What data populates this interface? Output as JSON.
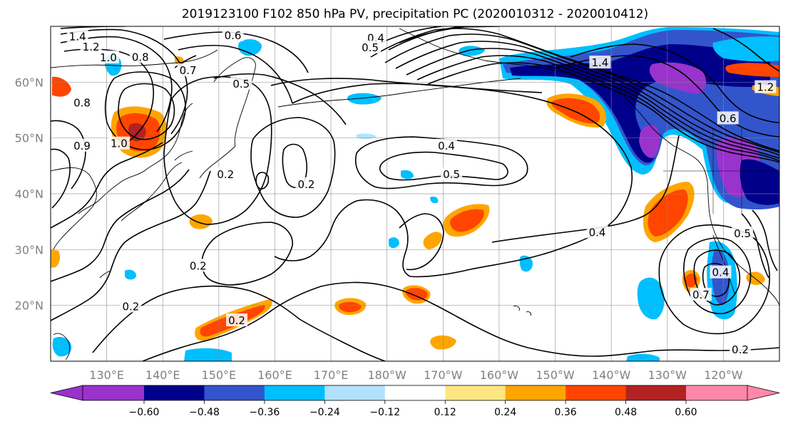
{
  "title": "2019123100 F102 850 hPa PV, precipitation PC (2020010312 - 2020010412)",
  "map": {
    "lat_labels": [
      {
        "label": "60°N",
        "lat": 60
      },
      {
        "label": "50°N",
        "lat": 50
      },
      {
        "label": "40°N",
        "lat": 40
      },
      {
        "label": "30°N",
        "lat": 30
      },
      {
        "label": "20°N",
        "lat": 20
      }
    ],
    "lon_labels": [
      {
        "label": "130°E",
        "lon": 130
      },
      {
        "label": "140°E",
        "lon": 140
      },
      {
        "label": "150°E",
        "lon": 150
      },
      {
        "label": "160°E",
        "lon": 160
      },
      {
        "label": "170°E",
        "lon": 170
      },
      {
        "label": "180°W",
        "lon": 180
      },
      {
        "label": "170°W",
        "lon": 190
      },
      {
        "label": "160°W",
        "lon": 200
      },
      {
        "label": "150°W",
        "lon": 210
      },
      {
        "label": "140°W",
        "lon": 220
      },
      {
        "label": "130°W",
        "lon": 230
      },
      {
        "label": "120°W",
        "lon": 240
      }
    ],
    "lon_range": [
      120,
      250
    ],
    "lat_range": [
      10,
      70
    ],
    "contour_labels": [
      {
        "text": "1.4",
        "lon": 124.8,
        "lat": 68.3
      },
      {
        "text": "1.2",
        "lon": 127.2,
        "lat": 66.4
      },
      {
        "text": "1.0",
        "lon": 130.3,
        "lat": 64.5
      },
      {
        "text": "0.8",
        "lon": 136.0,
        "lat": 64.6
      },
      {
        "text": "0.6",
        "lon": 152.5,
        "lat": 68.5
      },
      {
        "text": "0.7",
        "lon": 144.5,
        "lat": 62.2
      },
      {
        "text": "0.5",
        "lon": 154.0,
        "lat": 59.8
      },
      {
        "text": "0.8",
        "lon": 125.6,
        "lat": 56.4
      },
      {
        "text": "0.9",
        "lon": 125.6,
        "lat": 48.7
      },
      {
        "text": "1.0",
        "lon": 132.2,
        "lat": 49.1
      },
      {
        "text": "0.2",
        "lon": 151.2,
        "lat": 43.6
      },
      {
        "text": "0.2",
        "lon": 165.6,
        "lat": 41.8
      },
      {
        "text": "0.4",
        "lon": 190.6,
        "lat": 48.7
      },
      {
        "text": "0.5",
        "lon": 191.5,
        "lat": 43.6
      },
      {
        "text": "0.4",
        "lon": 217.5,
        "lat": 33.2
      },
      {
        "text": "0.2",
        "lon": 146.3,
        "lat": 27.2
      },
      {
        "text": "0.2",
        "lon": 134.3,
        "lat": 19.9
      },
      {
        "text": "0.2",
        "lon": 153.2,
        "lat": 17.4
      },
      {
        "text": "0.2",
        "lon": 243.0,
        "lat": 12.2
      },
      {
        "text": "1.4",
        "lon": 218.0,
        "lat": 63.6
      },
      {
        "text": "0.4",
        "lon": 178.0,
        "lat": 68.0
      },
      {
        "text": "0.5",
        "lon": 177.0,
        "lat": 66.3
      },
      {
        "text": "0.7",
        "lon": 236.0,
        "lat": 22.0
      },
      {
        "text": "0.4",
        "lon": 239.5,
        "lat": 26.0
      },
      {
        "text": "0.6",
        "lon": 240.8,
        "lat": 53.6
      },
      {
        "text": "1.2",
        "lon": 247.5,
        "lat": 59.2
      },
      {
        "text": "0.5",
        "lon": 243.4,
        "lat": 33.0
      }
    ]
  },
  "colorbar": {
    "ticks": [
      "−0.60",
      "−0.48",
      "−0.36",
      "−0.24",
      "−0.12",
      "0.12",
      "0.24",
      "0.36",
      "0.48",
      "0.60"
    ],
    "levels": [
      -0.6,
      -0.48,
      -0.36,
      -0.24,
      -0.12,
      0.12,
      0.24,
      0.36,
      0.48,
      0.6
    ],
    "colors": [
      "#9933cc",
      "#00008b",
      "#3355cc",
      "#00bfff",
      "#b0e2ff",
      "#ffffff",
      "#ffe680",
      "#ffa500",
      "#ff4500",
      "#b22222",
      "#ff88aa"
    ],
    "extend": "both"
  },
  "colors": {
    "purple": "#9933cc",
    "navy": "#00008b",
    "royal": "#3355cc",
    "sky": "#00bfff",
    "pale_blue": "#b0e2ff",
    "yellow": "#ffe680",
    "orange": "#ffa500",
    "red_orange": "#ff4500",
    "dark_red": "#b22222",
    "pink": "#ff88aa",
    "contour": "#000000",
    "grid": "#888888",
    "axis_label": "#808080"
  }
}
